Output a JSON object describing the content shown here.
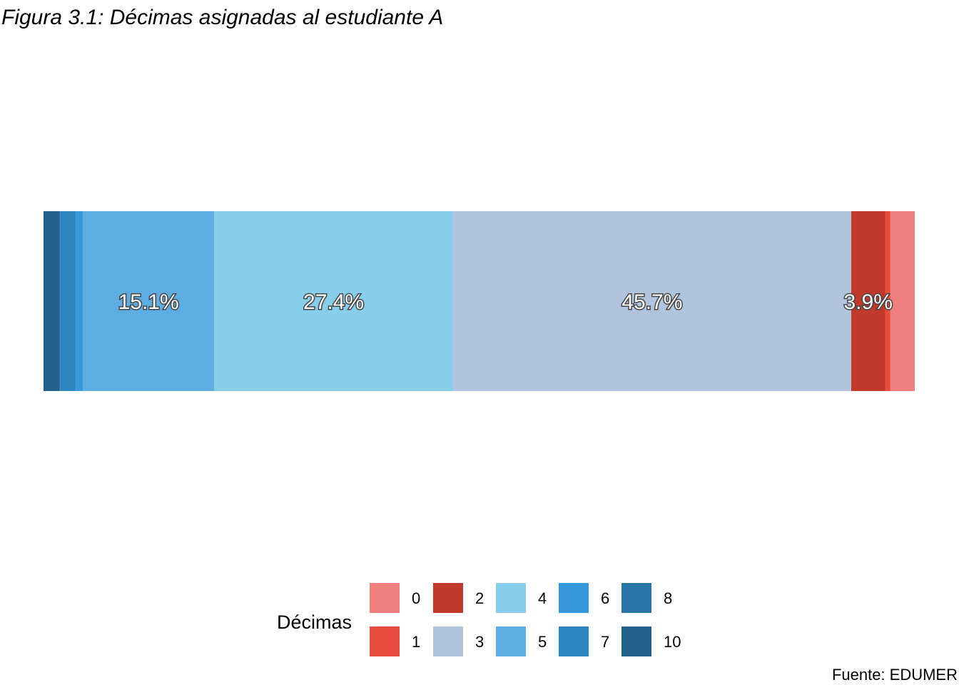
{
  "chart_data": {
    "type": "bar",
    "orientation": "horizontal-stacked-100",
    "title": "Figura 3.1: Décimas asignadas al estudiante A",
    "caption": "Fuente: EDUMER",
    "legend": {
      "title": "Décimas",
      "placement": "bottom"
    },
    "categories": [
      "0",
      "1",
      "2",
      "3",
      "4",
      "5",
      "6",
      "7",
      "8",
      "10"
    ],
    "series": [
      {
        "name": "0",
        "value": 2.8,
        "color": "#F08080",
        "label": ""
      },
      {
        "name": "1",
        "value": 0.6,
        "color": "#E74C3C",
        "label": ""
      },
      {
        "name": "2",
        "value": 3.9,
        "color": "#C0392B",
        "label": "3.9%"
      },
      {
        "name": "3",
        "value": 45.7,
        "color": "#B0C4DE",
        "label": "45.7%"
      },
      {
        "name": "4",
        "value": 27.4,
        "color": "#87CEEB",
        "label": "27.4%"
      },
      {
        "name": "5",
        "value": 15.1,
        "color": "#5DADE2",
        "label": "15.1%"
      },
      {
        "name": "6",
        "value": 0.8,
        "color": "#3498DB",
        "label": ""
      },
      {
        "name": "7",
        "value": 1.8,
        "color": "#2E86C1",
        "label": ""
      },
      {
        "name": "8",
        "value": 0.1,
        "color": "#2874A6",
        "label": ""
      },
      {
        "name": "10",
        "value": 1.8,
        "color": "#21618C",
        "label": ""
      }
    ],
    "stack_direction": "right-to-left",
    "xlim": [
      0,
      100
    ],
    "grid": false
  }
}
